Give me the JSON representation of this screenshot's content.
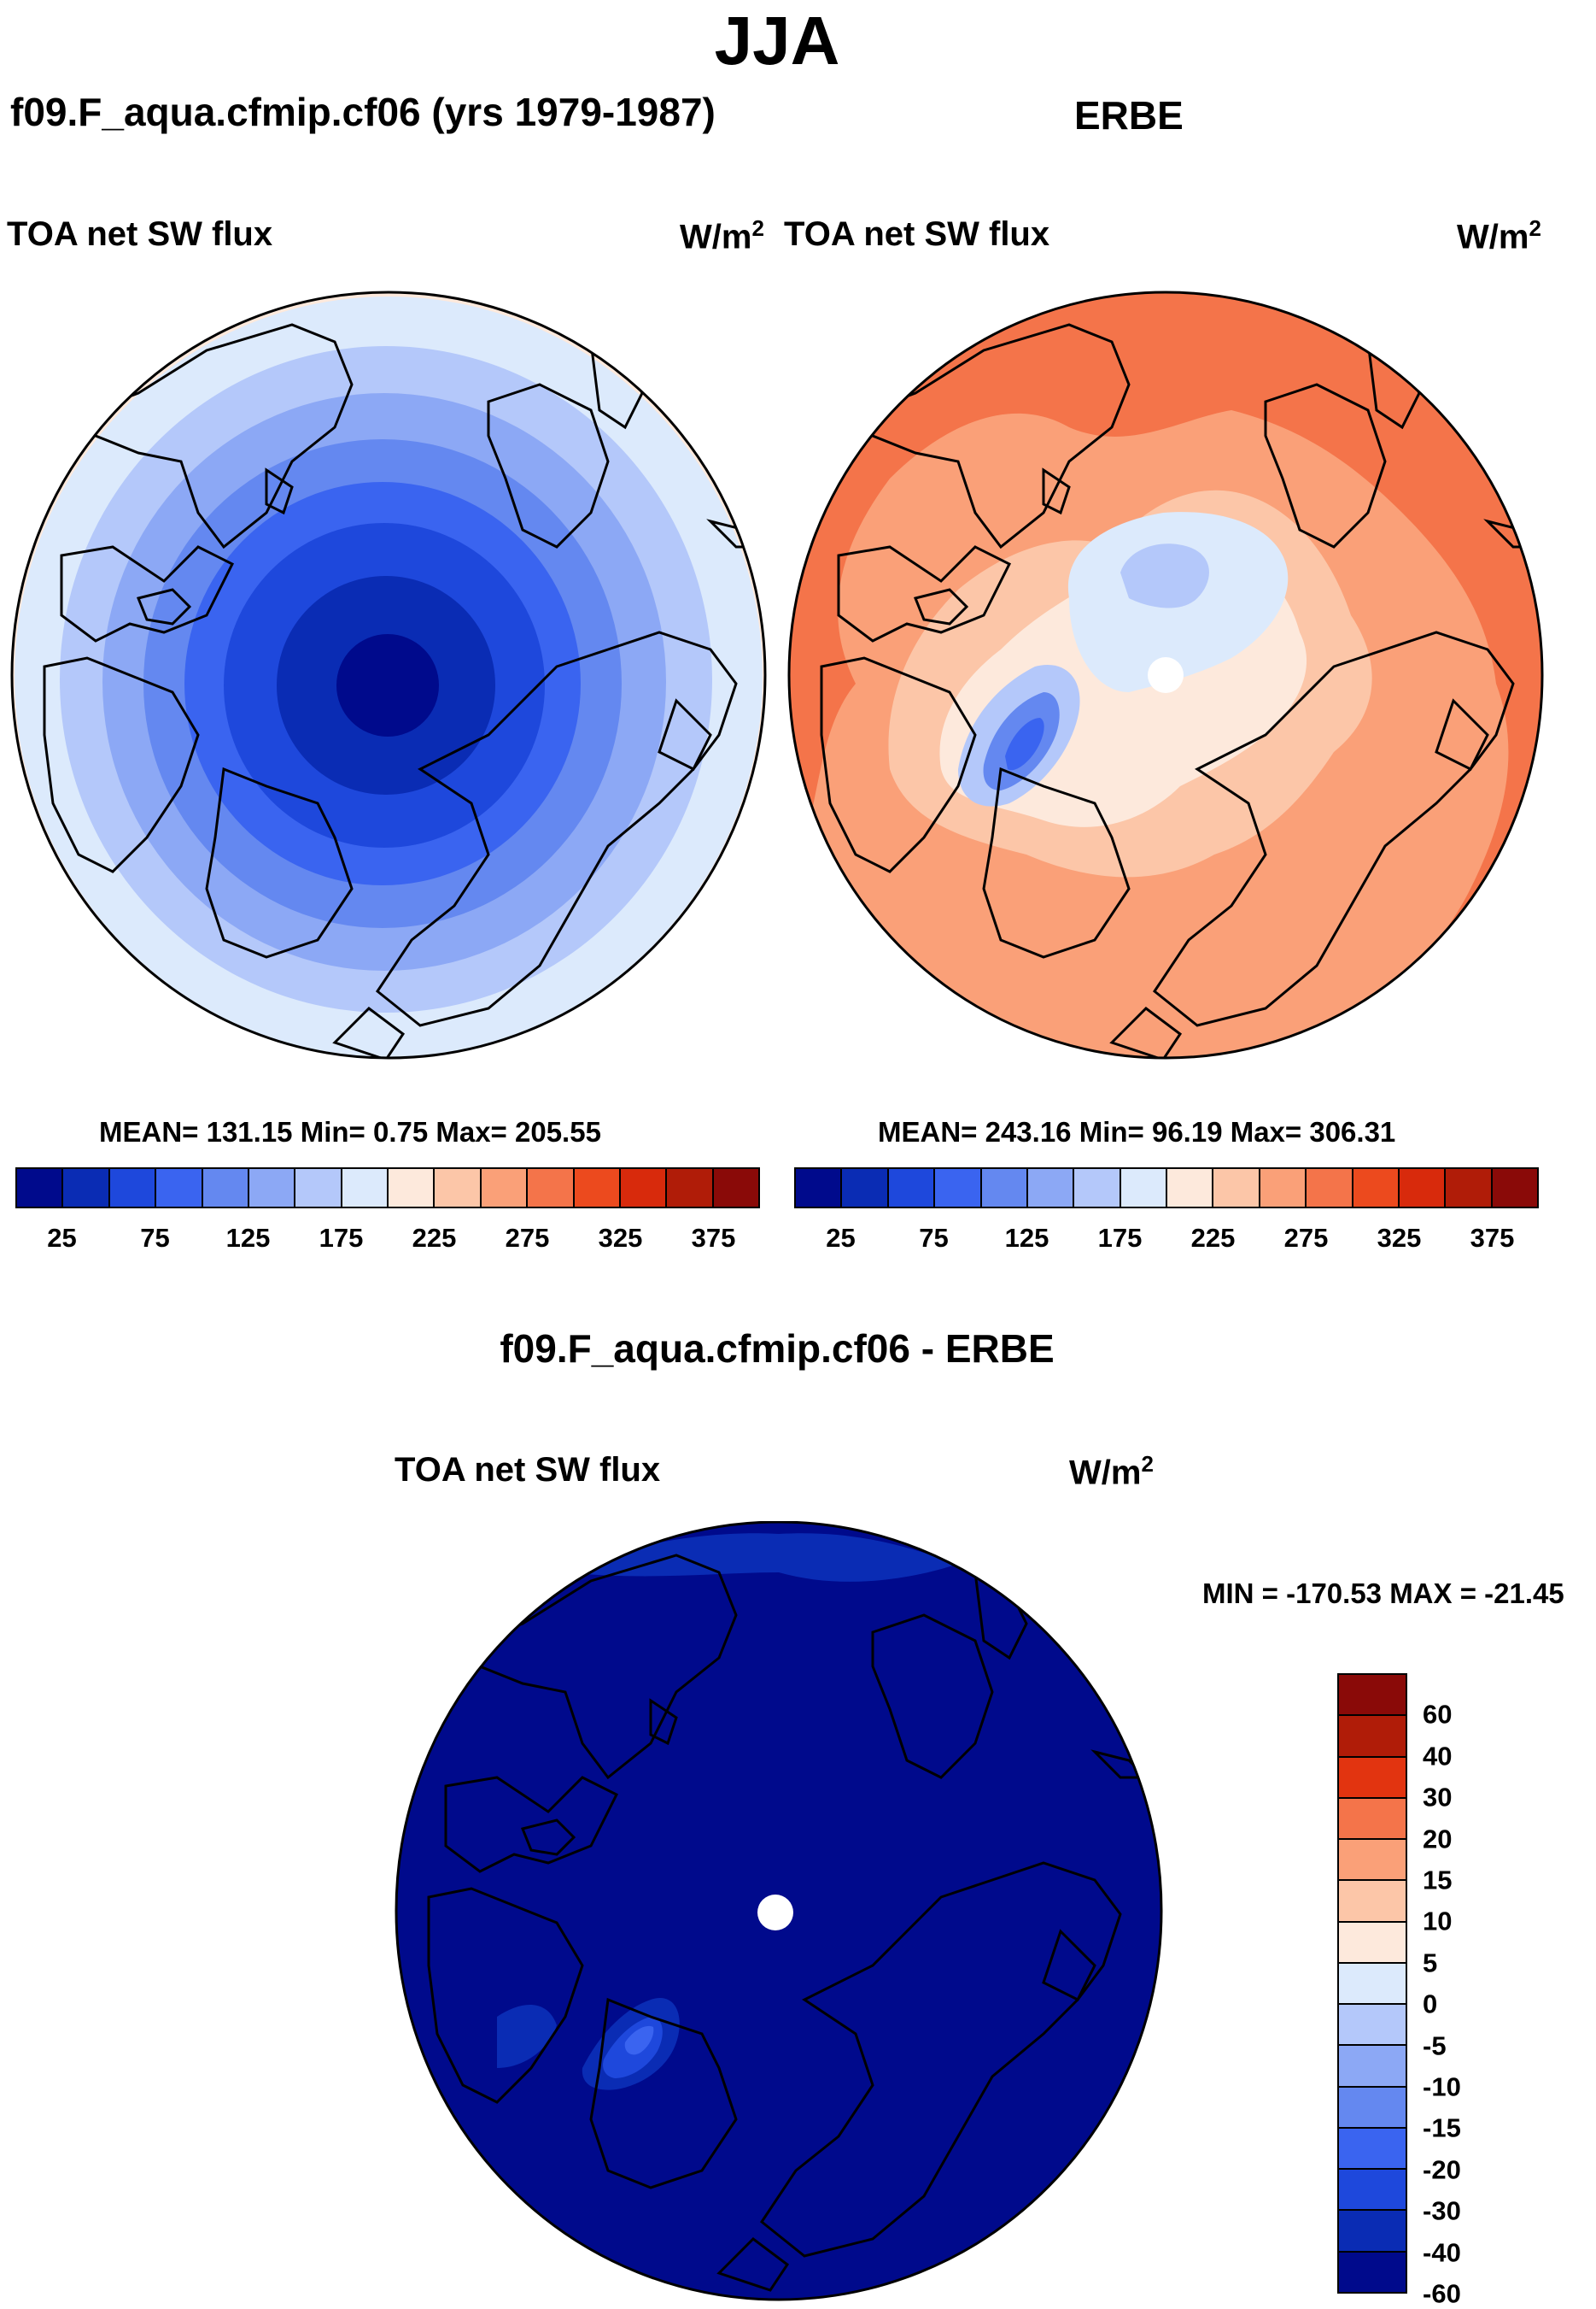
{
  "title": "JJA",
  "left_panel": {
    "subtitle": "f09.F_aqua.cfmip.cf06 (yrs 1979-1987)",
    "variable": "TOA net SW flux",
    "unit_base": "W/m",
    "unit_exp": "2",
    "stats": "MEAN= 131.15  Min=   0.75  Max= 205.55"
  },
  "right_panel": {
    "subtitle": "ERBE",
    "variable": "TOA net SW flux",
    "unit_base": "W/m",
    "unit_exp": "2",
    "stats": "MEAN= 243.16  Min=  96.19  Max= 306.31"
  },
  "diff_panel": {
    "title": "f09.F_aqua.cfmip.cf06 - ERBE",
    "variable": "TOA net SW flux",
    "unit_base": "W/m",
    "unit_exp": "2",
    "minmax": "MIN = -170.53 MAX = -21.45"
  },
  "colorbar_top": {
    "colors": [
      "#000a8c",
      "#0a2cb4",
      "#1e48dc",
      "#3a64f0",
      "#6488f0",
      "#8ca8f5",
      "#b4c8fa",
      "#dceafc",
      "#fde9dc",
      "#fcc6a8",
      "#faa078",
      "#f4744a",
      "#ec4a1e",
      "#d82a0c",
      "#b01c08",
      "#8a0a08"
    ],
    "ticks": [
      "25",
      "75",
      "125",
      "175",
      "225",
      "275",
      "325",
      "375"
    ]
  },
  "colorbar_diff": {
    "colors": [
      "#8a0a08",
      "#b01c08",
      "#e23410",
      "#f4744a",
      "#faa078",
      "#fcc6a8",
      "#fde9dc",
      "#dceafc",
      "#b4c8fa",
      "#8ca8f5",
      "#6488f0",
      "#3a64f0",
      "#1e48dc",
      "#0a2cb4",
      "#000a8c"
    ],
    "ticks": [
      "60",
      "40",
      "30",
      "20",
      "15",
      "10",
      "5",
      "0",
      "-5",
      "-10",
      "-15",
      "-20",
      "-30",
      "-40",
      "-60"
    ]
  },
  "colors": {
    "coast": "#000000",
    "missing": "#ffffff"
  }
}
